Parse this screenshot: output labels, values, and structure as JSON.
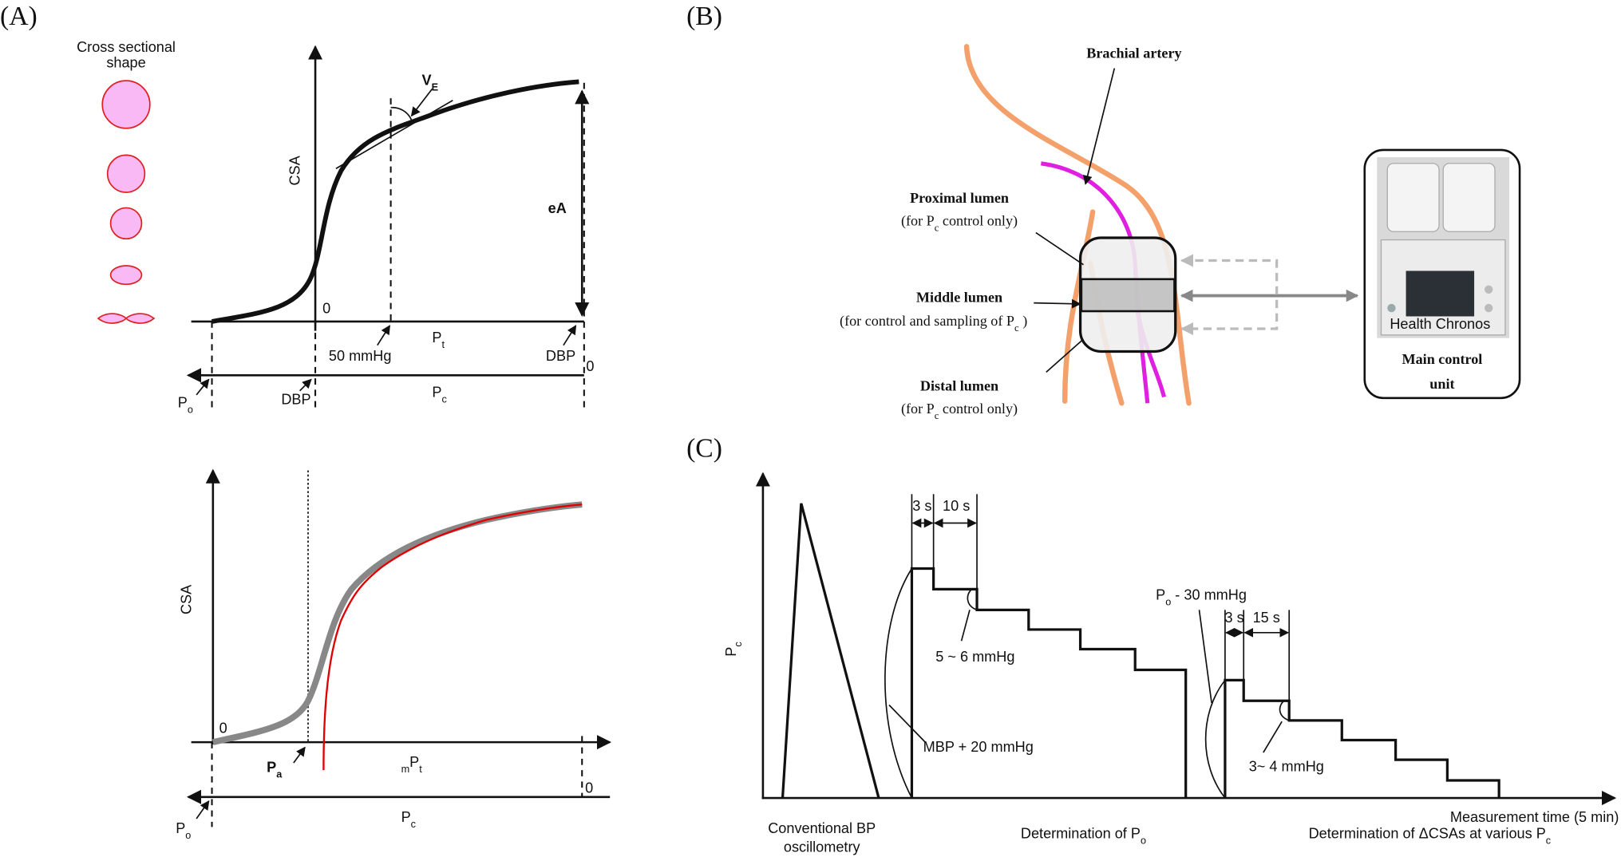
{
  "panel_a": {
    "label": "(A)",
    "cross_section_title": [
      "Cross sectional",
      "shape"
    ],
    "top": {
      "y_axis": "CSA",
      "tangent": [
        "V",
        {
          "sub": "E"
        }
      ],
      "amplitude": "eA",
      "origin": "0",
      "x_axis": [
        "P",
        {
          "sub": "t"
        }
      ],
      "x_mark": "50 mmHg",
      "dbp_top": "DBP",
      "pc_zero": "0",
      "pc_axis": [
        "P",
        {
          "sub": "c"
        }
      ],
      "po": [
        "P",
        {
          "sub": "o"
        }
      ],
      "dbp_bottom": "DBP"
    },
    "bottom": {
      "y_axis": "CSA",
      "origin": "0",
      "pa": [
        "P",
        {
          "sub": "a"
        }
      ],
      "x_axis": [
        {
          "sub": "m"
        },
        "P",
        {
          "sub": "t"
        }
      ],
      "pc_axis": [
        "P",
        {
          "sub": "c"
        }
      ],
      "pc_zero": "0",
      "po": [
        "P",
        {
          "sub": "o"
        }
      ]
    }
  },
  "panel_b": {
    "label": "(B)",
    "artery": "Brachial artery",
    "proximal": {
      "name": "Proximal lumen",
      "note": [
        "(for P",
        {
          "sub": "c"
        },
        " control only)"
      ]
    },
    "middle": {
      "name": "Middle lumen",
      "note": [
        "(for control and sampling of P",
        {
          "sub": "c"
        },
        " )"
      ]
    },
    "distal": {
      "name": "Distal lumen",
      "note": [
        "(for P",
        {
          "sub": "c"
        },
        " control only)"
      ]
    },
    "device_brand": "Health Chronos",
    "unit": [
      "Main control",
      "unit"
    ]
  },
  "panel_c": {
    "label": "(C)",
    "y_axis": [
      "P",
      {
        "sub": "c"
      }
    ],
    "step1": {
      "hold": "3 s",
      "step": "10 s",
      "drop": "5 ~ 6 mmHg",
      "start": "MBP + 20 mmHg"
    },
    "step2": {
      "start": [
        "P",
        {
          "sub": "o"
        },
        " - 30 mmHg"
      ],
      "hold": "3 s",
      "step": "15 s",
      "drop": "3~ 4 mmHg"
    },
    "x_axis": "Measurement time (5 min)",
    "phases": {
      "conventional": [
        "Conventional BP",
        "oscillometry"
      ],
      "baseline": [
        "Determination of P",
        {
          "sub": "o"
        }
      ],
      "various": [
        "Determination of ΔCSAs at various P",
        {
          "sub": "c"
        }
      ]
    }
  }
}
